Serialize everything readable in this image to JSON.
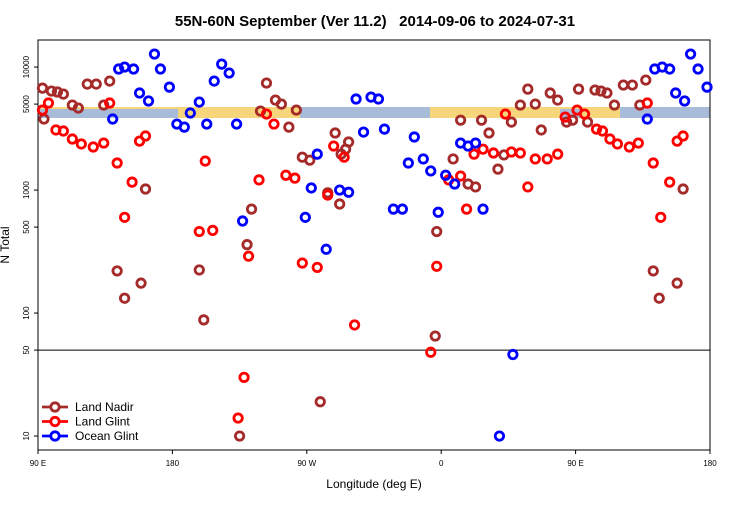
{
  "chart_data": {
    "type": "scatter",
    "title": "55N-60N September (Ver 11.2)   2014-09-06 to 2024-07-31",
    "xlabel": "Longitude (deg E)",
    "ylabel": "N Total",
    "xlim": [
      90,
      540
    ],
    "xticks": [
      {
        "value": 90,
        "label": "90 E"
      },
      {
        "value": 180,
        "label": "180"
      },
      {
        "value": 270,
        "label": "90 W"
      },
      {
        "value": 360,
        "label": "0"
      },
      {
        "value": 450,
        "label": "90 E"
      },
      {
        "value": 540,
        "label": "180"
      }
    ],
    "ylim": [
      7.7,
      16600
    ],
    "log_y": true,
    "yticks": [
      10,
      50,
      100,
      500,
      1000,
      5000,
      10000
    ],
    "hline": 50,
    "legend": "lower left",
    "series": [
      {
        "name": "Land Nadir",
        "color": "#a52a2a",
        "x": [
          93,
          94,
          99,
          103,
          107,
          113,
          117,
          123,
          129,
          134,
          138,
          143,
          148,
          159,
          162,
          198,
          201,
          225,
          230,
          233,
          239,
          243,
          249,
          253,
          258,
          263,
          267,
          272,
          279,
          284,
          289,
          292,
          293,
          296,
          298,
          356,
          357,
          368,
          373,
          378,
          383,
          387,
          392,
          398,
          402,
          407,
          413,
          418,
          423,
          427,
          433,
          438,
          444,
          448,
          452,
          458,
          463,
          467,
          471,
          476,
          482,
          488,
          493,
          497,
          502,
          506,
          518,
          522
        ],
        "values": [
          6740,
          3780,
          6380,
          6270,
          6030,
          4910,
          4640,
          7270,
          7270,
          4910,
          7690,
          220,
          132,
          175,
          1020,
          224,
          88,
          10,
          360,
          700,
          4390,
          7410,
          5390,
          5000,
          3250,
          4470,
          1850,
          1750,
          19,
          950,
          2910,
          770,
          1960,
          2150,
          2460,
          65,
          460,
          1790,
          3700,
          1120,
          1060,
          3700,
          2910,
          1480,
          1930,
          3570,
          4910,
          6620,
          5000,
          3080,
          6150,
          5390,
          3570,
          3700,
          6620,
          3570,
          6500,
          6380,
          6150,
          4910,
          7140,
          7140,
          4910,
          7840,
          220,
          132,
          175,
          1020
        ]
      },
      {
        "name": "Land Glint",
        "color": "#ff0000",
        "x": [
          93,
          97,
          102,
          107,
          113,
          119,
          127,
          134,
          138,
          143,
          148,
          153,
          158,
          162,
          198,
          202,
          207,
          224,
          228,
          231,
          238,
          243,
          248,
          256,
          262,
          267,
          277,
          284,
          288,
          295,
          302,
          353,
          357,
          365,
          373,
          377,
          382,
          388,
          395,
          403,
          407,
          413,
          418,
          423,
          431,
          438,
          443,
          451,
          456,
          464,
          468,
          473,
          478,
          486,
          492,
          498,
          502,
          507,
          513,
          518,
          522
        ],
        "values": [
          4470,
          5100,
          3080,
          3020,
          2600,
          2370,
          2240,
          2410,
          5100,
          1660,
          600,
          1160,
          2500,
          2750,
          460,
          1720,
          470,
          14,
          30,
          290,
          1210,
          4150,
          3440,
          1320,
          1250,
          255,
          235,
          910,
          2280,
          1850,
          80,
          48,
          240,
          1210,
          1300,
          700,
          1960,
          2150,
          2000,
          4150,
          2040,
          2000,
          1060,
          1790,
          1790,
          1960,
          3920,
          4470,
          4150,
          3130,
          3020,
          2600,
          2370,
          2240,
          2410,
          5100,
          1660,
          600,
          1160,
          2500,
          2750
        ]
      },
      {
        "name": "Ocean Glint",
        "color": "#0000ff",
        "x": [
          140,
          144,
          148,
          154,
          158,
          164,
          168,
          172,
          178,
          183,
          188,
          192,
          198,
          203,
          208,
          213,
          218,
          223,
          227,
          269,
          273,
          277,
          283,
          292,
          298,
          303,
          308,
          313,
          318,
          322,
          328,
          334,
          338,
          342,
          348,
          353,
          358,
          363,
          369,
          373,
          378,
          383,
          388,
          399,
          408,
          498,
          503,
          508,
          513,
          517,
          523,
          527,
          532,
          538
        ],
        "values": [
          3780,
          9640,
          10000,
          9640,
          6150,
          5300,
          12760,
          9640,
          6870,
          3440,
          3250,
          4230,
          5190,
          3440,
          7690,
          10570,
          8940,
          3440,
          560,
          600,
          1040,
          1960,
          330,
          1000,
          960,
          5500,
          2960,
          5700,
          5500,
          3130,
          700,
          700,
          1660,
          2700,
          1790,
          1430,
          660,
          1320,
          1120,
          2410,
          2280,
          2410,
          700,
          10,
          46,
          3780,
          9640,
          10000,
          9640,
          6150,
          5300,
          12760,
          9640,
          6870
        ]
      }
    ]
  }
}
